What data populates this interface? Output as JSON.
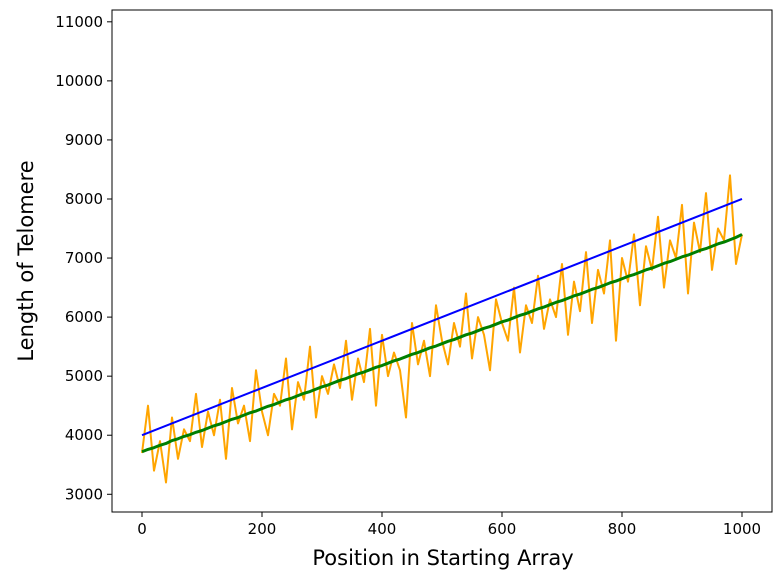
{
  "chart_data": {
    "type": "line",
    "title": "",
    "xlabel": "Position in Starting Array",
    "ylabel": "Length of Telomere",
    "xlim": [
      -50,
      1050
    ],
    "ylim": [
      2700,
      11200
    ],
    "xticks": [
      0,
      200,
      400,
      600,
      800,
      1000
    ],
    "yticks": [
      3000,
      4000,
      5000,
      6000,
      7000,
      8000,
      9000,
      10000,
      11000
    ],
    "grid": false,
    "legend": "none",
    "series": [
      {
        "color": "#ffa500",
        "note": "noisy per-position samples, sampled every 10 positions (x = 0..1000)",
        "x": [
          0,
          10,
          20,
          30,
          40,
          50,
          60,
          70,
          80,
          90,
          100,
          110,
          120,
          130,
          140,
          150,
          160,
          170,
          180,
          190,
          200,
          210,
          220,
          230,
          240,
          250,
          260,
          270,
          280,
          290,
          300,
          310,
          320,
          330,
          340,
          350,
          360,
          370,
          380,
          390,
          400,
          410,
          420,
          430,
          440,
          450,
          460,
          470,
          480,
          490,
          500,
          510,
          520,
          530,
          540,
          550,
          560,
          570,
          580,
          590,
          600,
          610,
          620,
          630,
          640,
          650,
          660,
          670,
          680,
          690,
          700,
          710,
          720,
          730,
          740,
          750,
          760,
          770,
          780,
          790,
          800,
          810,
          820,
          830,
          840,
          850,
          860,
          870,
          880,
          890,
          900,
          910,
          920,
          930,
          940,
          950,
          960,
          970,
          980,
          990,
          1000
        ],
        "values": [
          3700,
          4500,
          3400,
          3900,
          3200,
          4300,
          3600,
          4100,
          3900,
          4700,
          3800,
          4400,
          4000,
          4600,
          3600,
          4800,
          4200,
          4500,
          3900,
          5100,
          4400,
          4000,
          4700,
          4500,
          5300,
          4100,
          4900,
          4600,
          5500,
          4300,
          5000,
          4700,
          5200,
          4800,
          5600,
          4600,
          5300,
          4900,
          5800,
          4500,
          5700,
          5000,
          5400,
          5100,
          4300,
          5900,
          5200,
          5600,
          5000,
          6200,
          5600,
          5200,
          5900,
          5500,
          6400,
          5300,
          6000,
          5700,
          5100,
          6300,
          5900,
          5600,
          6500,
          5400,
          6200,
          5900,
          6700,
          5800,
          6300,
          6000,
          6900,
          5700,
          6600,
          6100,
          7100,
          5900,
          6800,
          6400,
          7300,
          5600,
          7000,
          6600,
          7400,
          6200,
          7200,
          6800,
          7700,
          6500,
          7300,
          7000,
          7900,
          6400,
          7600,
          7100,
          8100,
          6800,
          7500,
          7300,
          8400,
          6900,
          7400
        ]
      },
      {
        "color": "#0000ff",
        "note": "expected (mean) length, smooth trend",
        "x": [
          0,
          1000
        ],
        "values": [
          4000,
          8000
        ]
      },
      {
        "color": "#007f00",
        "note": "average over runs, sampled every 10 positions",
        "x": [
          0,
          10,
          20,
          30,
          40,
          50,
          60,
          70,
          80,
          90,
          100,
          110,
          120,
          130,
          140,
          150,
          160,
          170,
          180,
          190,
          200,
          210,
          220,
          230,
          240,
          250,
          260,
          270,
          280,
          290,
          300,
          310,
          320,
          330,
          340,
          350,
          360,
          370,
          380,
          390,
          400,
          410,
          420,
          430,
          440,
          450,
          460,
          470,
          480,
          490,
          500,
          510,
          520,
          530,
          540,
          550,
          560,
          570,
          580,
          590,
          600,
          610,
          620,
          630,
          640,
          650,
          660,
          670,
          680,
          690,
          700,
          710,
          720,
          730,
          740,
          750,
          760,
          770,
          780,
          790,
          800,
          810,
          820,
          830,
          840,
          850,
          860,
          870,
          880,
          890,
          900,
          910,
          920,
          930,
          940,
          950,
          960,
          970,
          980,
          990,
          1000
        ],
        "values": [
          3720,
          3760,
          3790,
          3830,
          3860,
          3910,
          3940,
          3980,
          4010,
          4050,
          4080,
          4120,
          4160,
          4190,
          4230,
          4270,
          4300,
          4340,
          4380,
          4410,
          4450,
          4490,
          4520,
          4560,
          4600,
          4630,
          4670,
          4710,
          4740,
          4780,
          4820,
          4850,
          4890,
          4930,
          4960,
          5000,
          5040,
          5070,
          5110,
          5150,
          5180,
          5220,
          5260,
          5290,
          5330,
          5370,
          5400,
          5440,
          5480,
          5510,
          5550,
          5590,
          5620,
          5660,
          5700,
          5730,
          5770,
          5810,
          5840,
          5880,
          5920,
          5950,
          5990,
          6030,
          6060,
          6100,
          6140,
          6170,
          6210,
          6250,
          6280,
          6320,
          6360,
          6390,
          6430,
          6470,
          6500,
          6540,
          6580,
          6610,
          6650,
          6690,
          6720,
          6760,
          6800,
          6830,
          6870,
          6910,
          6940,
          6980,
          7020,
          7050,
          7090,
          7130,
          7160,
          7200,
          7240,
          7270,
          7310,
          7350,
          7400
        ]
      }
    ]
  }
}
